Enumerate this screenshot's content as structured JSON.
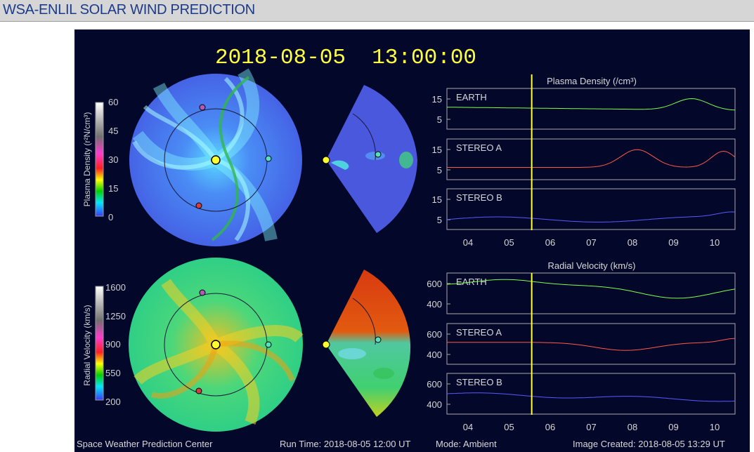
{
  "page": {
    "title": "WSA-ENLIL SOLAR WIND PREDICTION"
  },
  "timestamp": "2018-08-05  13:00:00",
  "colorbars": {
    "density": {
      "label": "Plasma Density (r²N/cm³)",
      "ticks": [
        "60",
        "45",
        "30",
        "15",
        "0"
      ]
    },
    "velocity": {
      "label": "Radial Velocity (km/s)",
      "ticks": [
        "1600",
        "1250",
        "900",
        "550",
        "200"
      ]
    }
  },
  "plots": {
    "density": {
      "title": "Plasma Density (/cm³)",
      "yticks": [
        "15",
        "5"
      ],
      "rows": [
        {
          "label": "EARTH",
          "color": "#7fff4f"
        },
        {
          "label": "STEREO A",
          "color": "#ff5a4a"
        },
        {
          "label": "STEREO B",
          "color": "#5a5aff"
        }
      ]
    },
    "velocity": {
      "title": "Radial Velocity (km/s)",
      "yticks": [
        "600",
        "400"
      ],
      "rows": [
        {
          "label": "EARTH",
          "color": "#7fff4f"
        },
        {
          "label": "STEREO A",
          "color": "#ff5a4a"
        },
        {
          "label": "STEREO B",
          "color": "#5a5aff"
        }
      ]
    },
    "xticks": [
      "04",
      "05",
      "06",
      "07",
      "08",
      "09",
      "10"
    ],
    "current_time_marker": "05.55",
    "marker_color": "#ffff33"
  },
  "footer": {
    "center": "Space Weather Prediction Center",
    "run_time": "Run Time: 2018-08-05 12:00 UT",
    "mode": "Mode: Ambient",
    "created": "Image Created: 2018-08-05 13:29 UT"
  }
}
